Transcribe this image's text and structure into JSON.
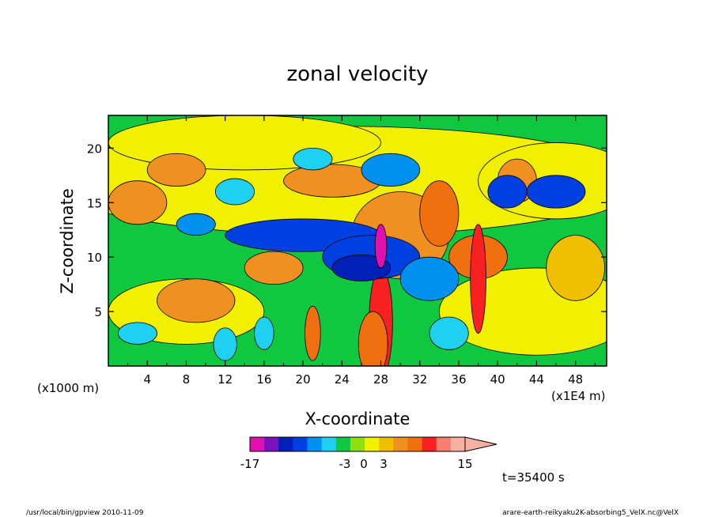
{
  "chart_data": {
    "type": "heatmap",
    "title": "zonal velocity",
    "xlabel": "X-coordinate",
    "ylabel": "Z-coordinate",
    "x_unit_left": "(x1000 m)",
    "x_unit_right": "(x1E4 m)",
    "x_ticks": [
      "4",
      "8",
      "12",
      "16",
      "20",
      "24",
      "28",
      "32",
      "36",
      "40",
      "44",
      "48"
    ],
    "y_ticks": [
      "5",
      "10",
      "15",
      "20"
    ],
    "xlim": [
      0,
      51.2
    ],
    "ylim": [
      0,
      23
    ],
    "colorbar": {
      "labels": [
        "-17",
        "-3",
        "0",
        "3",
        "15"
      ],
      "colors": [
        "#e010b0",
        "#7a10c0",
        "#0020b8",
        "#0040e0",
        "#0090f0",
        "#20d0f0",
        "#10c840",
        "#90e010",
        "#f0f000",
        "#f0c000",
        "#f09020",
        "#f07010",
        "#f82020",
        "#f88070",
        "#f8b0a0"
      ]
    },
    "time_label": "t=35400 s",
    "footer_left": "/usr/local/bin/gpview   2010-11-09",
    "footer_right": "arare-earth-reikyaku2K-absorbing5_VelX.nc@VelX"
  }
}
